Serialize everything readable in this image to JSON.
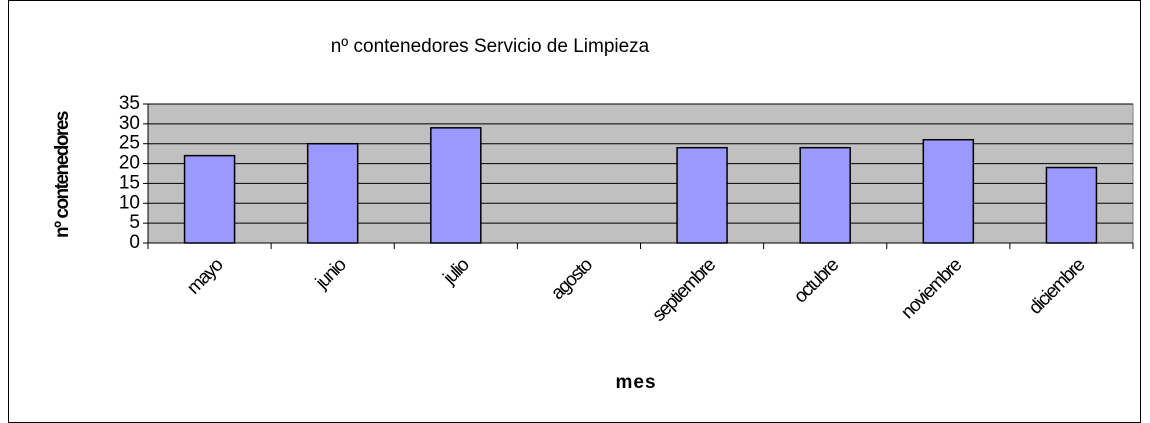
{
  "chart_data": {
    "type": "bar",
    "title": "nº contenedores Servicio de Limpieza",
    "x_label": "mes",
    "y_label": "nº contenedores",
    "categories": [
      "mayo",
      "junio",
      "julio",
      "agosto",
      "septiembre",
      "octubre",
      "noviembre",
      "diciembre"
    ],
    "values": [
      22,
      25,
      29,
      null,
      24,
      24,
      26,
      19
    ],
    "color": "#9999ff",
    "plot_background": "#c0c0c0",
    "ylim": [
      0,
      35
    ],
    "yticks": [
      0,
      5,
      10,
      15,
      20,
      25,
      30,
      35
    ],
    "grid": true
  }
}
